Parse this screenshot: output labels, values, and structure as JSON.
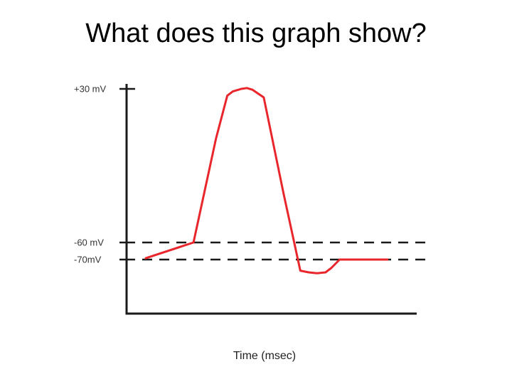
{
  "slide": {
    "title": "What does this graph show?"
  },
  "chart_data": {
    "type": "line",
    "title": "",
    "xlabel": "Time (msec)",
    "ylabel": "",
    "y_ticks": [
      {
        "value": 30,
        "label": "+30 mV"
      },
      {
        "value": -60,
        "label": "-60 mV"
      },
      {
        "value": -70,
        "label": "-70mV"
      }
    ],
    "reference_lines": [
      {
        "value": -60,
        "style": "dashed"
      },
      {
        "value": -70,
        "style": "dashed"
      }
    ],
    "series": [
      {
        "color": "#e8262b",
        "x": [
          0.0,
          1.7,
          2.5,
          2.9,
          3.1,
          3.4,
          3.6,
          3.8,
          4.2,
          4.9,
          5.5,
          5.8,
          6.1,
          6.4,
          6.6,
          6.9,
          7.4,
          8.6
        ],
        "y": [
          -69.2,
          -60,
          1,
          26,
          28.5,
          30,
          30.5,
          29.5,
          25,
          -31,
          -76.5,
          -77.5,
          -78,
          -77.5,
          -75,
          -70,
          -70,
          -70
        ]
      }
    ],
    "ylim": [
      -85,
      35
    ],
    "xlim": [
      0,
      10
    ],
    "grid": false,
    "legend": "none"
  }
}
